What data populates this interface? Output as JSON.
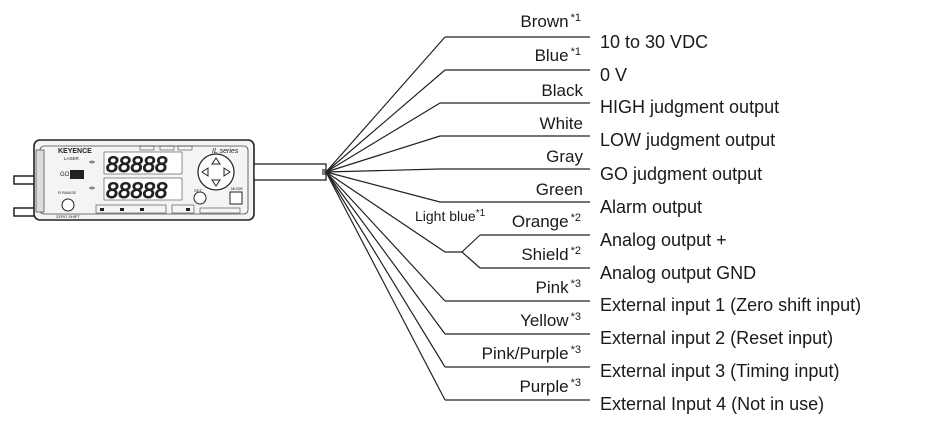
{
  "device": {
    "brand": "KEYENCE",
    "series": "IL series",
    "labels": {
      "laser": "LASER",
      "go": "GO",
      "high": "HIGH",
      "low": "LOW",
      "range": "R.RANGE",
      "set": "SET",
      "mode": "MODE",
      "zero_shift": "ZERO SHIFT",
      "shift": "SHIFT",
      "bank": "BANK"
    },
    "display_top": "88888",
    "display_bottom": "88888"
  },
  "wires": [
    {
      "color_name": "Brown",
      "note": "*1",
      "function": "10 to 30 VDC"
    },
    {
      "color_name": "Blue",
      "note": "*1",
      "function": "0 V"
    },
    {
      "color_name": "Black",
      "note": "",
      "function": "HIGH judgment output"
    },
    {
      "color_name": "White",
      "note": "",
      "function": "LOW judgment output"
    },
    {
      "color_name": "Gray",
      "note": "",
      "function": "GO judgment output"
    },
    {
      "color_name": "Green",
      "note": "",
      "function": "Alarm output"
    },
    {
      "color_name": "Orange",
      "note": "*2",
      "function": "Analog output +"
    },
    {
      "color_name": "Shield",
      "note": "*2",
      "function": "Analog output GND"
    },
    {
      "color_name": "Pink",
      "note": "*3",
      "function": "External input 1 (Zero shift input)"
    },
    {
      "color_name": "Yellow",
      "note": "*3",
      "function": "External input 2 (Reset input)"
    },
    {
      "color_name": "Pink/Purple",
      "note": "*3",
      "function": "External input 3 (Timing input)"
    },
    {
      "color_name": "Purple",
      "note": "*3",
      "function": "External Input 4 (Not in use)"
    }
  ],
  "light_blue": {
    "label": "Light blue",
    "note": "*1"
  }
}
